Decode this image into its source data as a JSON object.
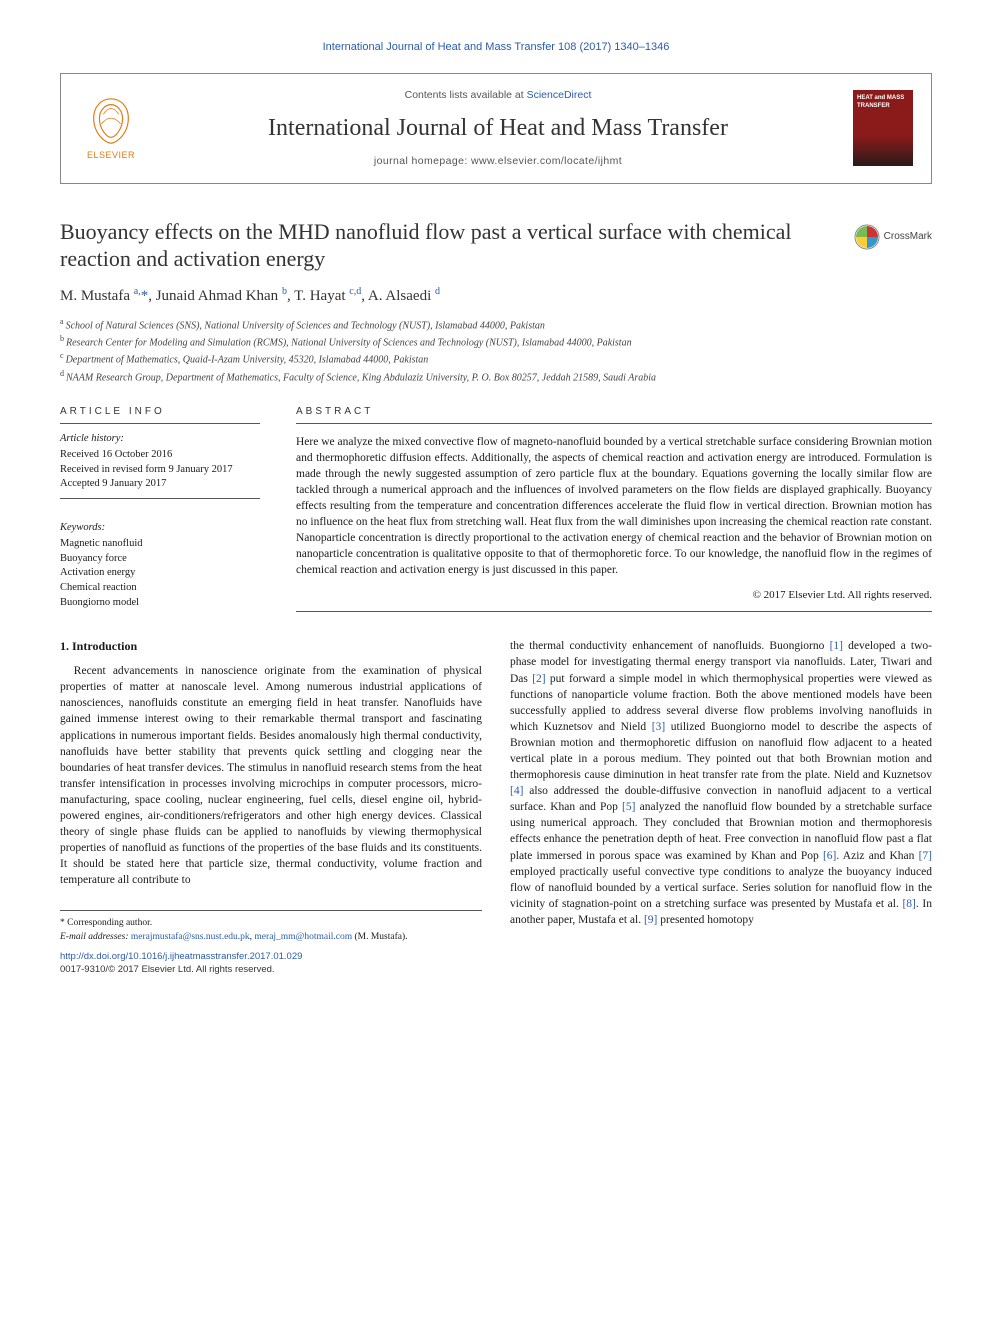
{
  "top_citation": "International Journal of Heat and Mass Transfer 108 (2017) 1340–1346",
  "header": {
    "contents_prefix": "Contents lists available at ",
    "contents_link": "ScienceDirect",
    "journal_name": "International Journal of Heat and Mass Transfer",
    "homepage_prefix": "journal homepage: ",
    "homepage_url": "www.elsevier.com/locate/ijhmt",
    "publisher": "ELSEVIER",
    "cover_line1": "HEAT and MASS",
    "cover_line2": "TRANSFER"
  },
  "crossmark_label": "CrossMark",
  "title": "Buoyancy effects on the MHD nanofluid flow past a vertical surface with chemical reaction and activation energy",
  "authors_html": "M. Mustafa <sup>a,</sup><span class='star'>*</span>, Junaid Ahmad Khan <sup>b</sup>, T. Hayat <sup>c,d</sup>, A. Alsaedi <sup>d</sup>",
  "affiliations": [
    {
      "sup": "a",
      "text": "School of Natural Sciences (SNS), National University of Sciences and Technology (NUST), Islamabad 44000, Pakistan"
    },
    {
      "sup": "b",
      "text": "Research Center for Modeling and Simulation (RCMS), National University of Sciences and Technology (NUST), Islamabad 44000, Pakistan"
    },
    {
      "sup": "c",
      "text": "Department of Mathematics, Quaid-I-Azam University, 45320, Islamabad 44000, Pakistan"
    },
    {
      "sup": "d",
      "text": "NAAM Research Group, Department of Mathematics, Faculty of Science, King Abdulaziz University, P. O. Box 80257, Jeddah 21589, Saudi Arabia"
    }
  ],
  "info": {
    "heading": "ARTICLE INFO",
    "history_label": "Article history:",
    "history": [
      "Received 16 October 2016",
      "Received in revised form 9 January 2017",
      "Accepted 9 January 2017"
    ],
    "keywords_label": "Keywords:",
    "keywords": [
      "Magnetic nanofluid",
      "Buoyancy force",
      "Activation energy",
      "Chemical reaction",
      "Buongiorno model"
    ]
  },
  "abstract": {
    "heading": "ABSTRACT",
    "text": "Here we analyze the mixed convective flow of magneto-nanofluid bounded by a vertical stretchable surface considering Brownian motion and thermophoretic diffusion effects. Additionally, the aspects of chemical reaction and activation energy are introduced. Formulation is made through the newly suggested assumption of zero particle flux at the boundary. Equations governing the locally similar flow are tackled through a numerical approach and the influences of involved parameters on the flow fields are displayed graphically. Buoyancy effects resulting from the temperature and concentration differences accelerate the fluid flow in vertical direction. Brownian motion has no influence on the heat flux from stretching wall. Heat flux from the wall diminishes upon increasing the chemical reaction rate constant. Nanoparticle concentration is directly proportional to the activation energy of chemical reaction and the behavior of Brownian motion on nanoparticle concentration is qualitative opposite to that of thermophoretic force. To our knowledge, the nanofluid flow in the regimes of chemical reaction and activation energy is just discussed in this paper.",
    "copyright": "© 2017 Elsevier Ltd. All rights reserved."
  },
  "intro": {
    "heading": "1. Introduction",
    "p1": "Recent advancements in nanoscience originate from the examination of physical properties of matter at nanoscale level. Among numerous industrial applications of nanosciences, nanofluids constitute an emerging field in heat transfer. Nanofluids have gained immense interest owing to their remarkable thermal transport and fascinating applications in numerous important fields. Besides anomalously high thermal conductivity, nanofluids have better stability that prevents quick settling and clogging near the boundaries of heat transfer devices. The stimulus in nanofluid research stems from the heat transfer intensification in processes involving microchips in computer processors, micro-manufacturing, space cooling, nuclear engineering, fuel cells, diesel engine oil, hybrid-powered engines, air-conditioners/refrigerators and other high energy devices. Classical theory of single phase fluids can be applied to nanofluids by viewing thermophysical properties of nanofluid as functions of the properties of the base fluids and its constituents. It should be stated here that particle size, thermal conductivity, volume fraction and temperature all contribute to",
    "p2_a": "the thermal conductivity enhancement of nanofluids. Buongiorno ",
    "p2_b": " developed a two-phase model for investigating thermal energy transport via nanofluids. Later, Tiwari and Das ",
    "p2_c": " put forward a simple model in which thermophysical properties were viewed as functions of nanoparticle volume fraction. Both the above mentioned models have been successfully applied to address several diverse flow problems involving nanofluids in which Kuznetsov and Nield ",
    "p2_d": " utilized Buongiorno model to describe the aspects of Brownian motion and thermophoretic diffusion on nanofluid flow adjacent to a heated vertical plate in a porous medium. They pointed out that both Brownian motion and thermophoresis cause diminution in heat transfer rate from the plate. Nield and Kuznetsov ",
    "p2_e": " also addressed the double-diffusive convection in nanofluid adjacent to a vertical surface. Khan and Pop ",
    "p2_f": " analyzed the nanofluid flow bounded by a stretchable surface using numerical approach. They concluded that Brownian motion and thermophoresis effects enhance the penetration depth of heat. Free convection in nanofluid flow past a flat plate immersed in porous space was examined by Khan and Pop ",
    "p2_g": ". Aziz and Khan ",
    "p2_h": " employed practically useful convective type conditions to analyze the buoyancy induced flow of nanofluid bounded by a vertical surface. Series solution for nanofluid flow in the vicinity of stagnation-point on a stretching surface was presented by Mustafa et al. ",
    "p2_i": ". In another paper, Mustafa et al. ",
    "p2_j": " presented homotopy"
  },
  "refs": {
    "r1": "[1]",
    "r2": "[2]",
    "r3": "[3]",
    "r4": "[4]",
    "r5": "[5]",
    "r6": "[6]",
    "r7": "[7]",
    "r8": "[8]",
    "r9": "[9]"
  },
  "footnote": {
    "corr_label": "* Corresponding author.",
    "email_label": "E-mail addresses:",
    "email1": "merajmustafa@sns.nust.edu.pk",
    "email_sep": ", ",
    "email2": "meraj_mm@hotmail.com",
    "email_who": "(M. Mustafa)."
  },
  "doi": {
    "url": "http://dx.doi.org/10.1016/j.ijheatmasstransfer.2017.01.029",
    "issn": "0017-9310/© 2017 Elsevier Ltd. All rights reserved."
  },
  "colors": {
    "link": "#2a5caa",
    "elsevier_orange": "#e47911",
    "cover_red": "#8b1a1a",
    "text": "#1a1a1a",
    "border": "#555"
  }
}
